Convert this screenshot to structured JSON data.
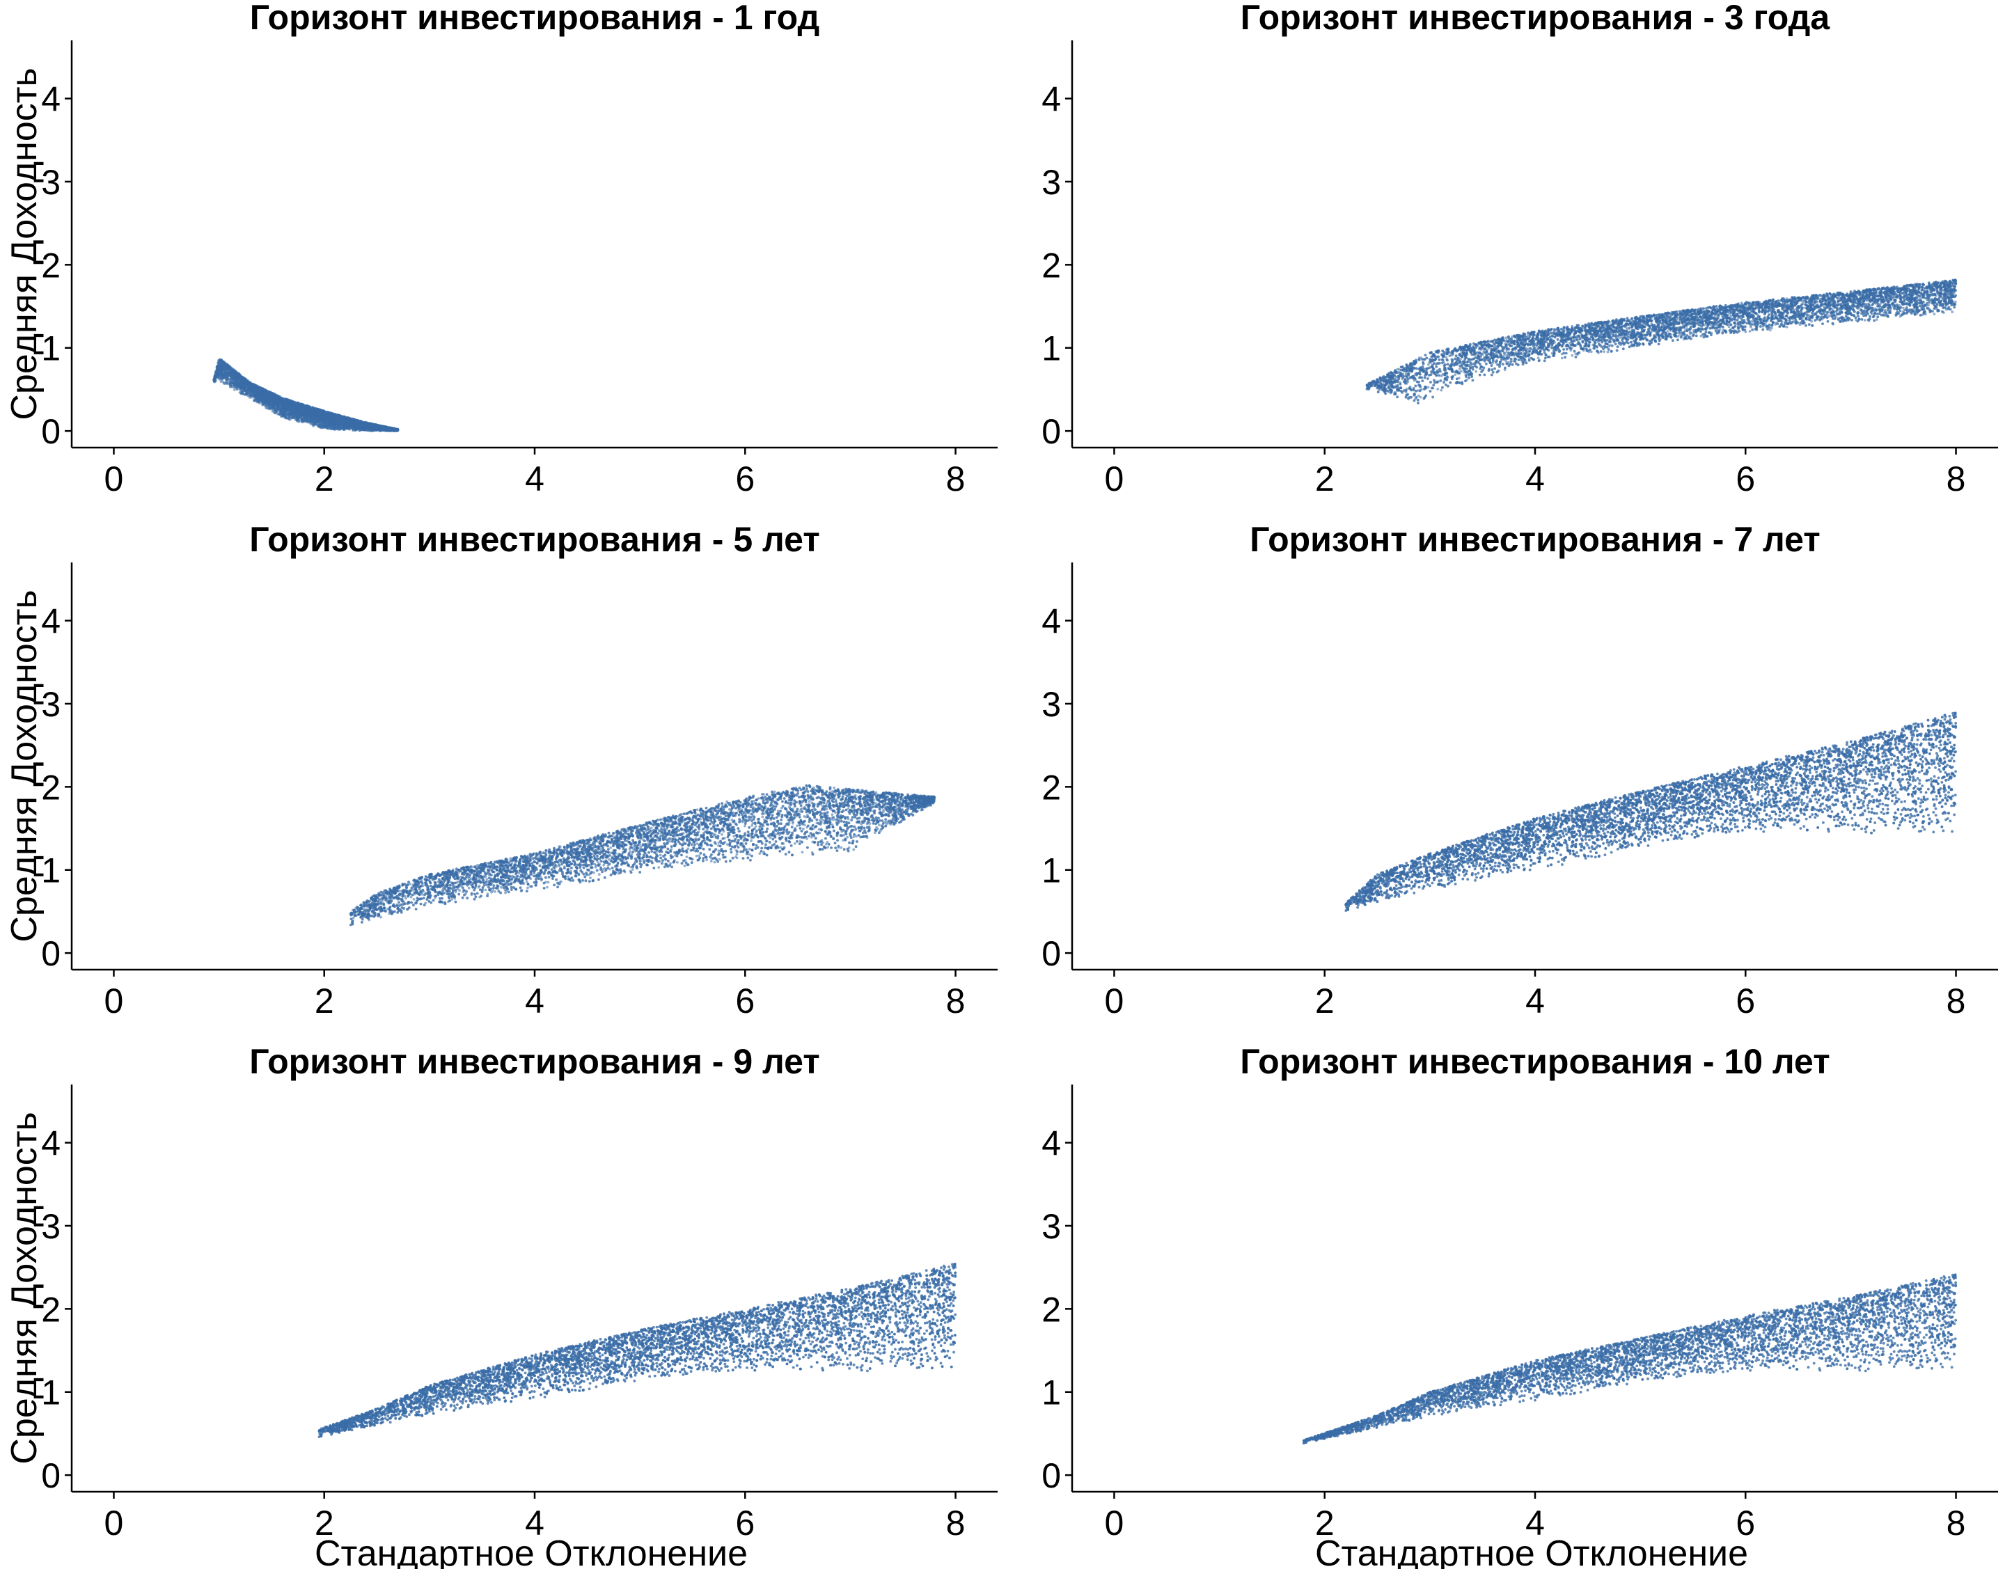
{
  "figure": {
    "point_color": "#3a6ea8",
    "x_axis_title": "Стандартное Отклонение",
    "y_axis_title": "Средняя Доходность"
  },
  "chart_data": [
    {
      "type": "scatter",
      "title": "Горизонт инвестирования - 1 год",
      "xlabel": "",
      "ylabel": "Средняя Доходность",
      "xlim": [
        -0.4,
        8.4
      ],
      "ylim": [
        -0.2,
        4.7
      ],
      "x_ticks": [
        "0",
        "2",
        "4",
        "6",
        "8"
      ],
      "y_ticks": [
        "0",
        "1",
        "2",
        "3",
        "4"
      ],
      "grid": false,
      "point_cloud": {
        "x_range": [
          0.95,
          2.7
        ],
        "upper_edge": [
          [
            0.95,
            0.62
          ],
          [
            1.0,
            0.88
          ],
          [
            1.3,
            0.58
          ],
          [
            1.6,
            0.4
          ],
          [
            2.0,
            0.24
          ],
          [
            2.4,
            0.1
          ],
          [
            2.7,
            0.02
          ]
        ],
        "lower_edge": [
          [
            0.95,
            0.58
          ],
          [
            1.0,
            0.6
          ],
          [
            1.3,
            0.38
          ],
          [
            1.6,
            0.16
          ],
          [
            2.0,
            0.02
          ],
          [
            2.4,
            0.0
          ],
          [
            2.7,
            0.0
          ]
        ],
        "points": 6000
      }
    },
    {
      "type": "scatter",
      "title": "Горизонт инвестирования - 3 года",
      "xlabel": "",
      "ylabel": "",
      "xlim": [
        -0.4,
        8.4
      ],
      "ylim": [
        -0.2,
        4.7
      ],
      "x_ticks": [
        "0",
        "2",
        "4",
        "6",
        "8"
      ],
      "y_ticks": [
        "0",
        "1",
        "2",
        "3",
        "4"
      ],
      "grid": false,
      "point_cloud": {
        "x_range": [
          2.4,
          8.0
        ],
        "upper_edge": [
          [
            2.4,
            0.56
          ],
          [
            3.0,
            0.95
          ],
          [
            4.0,
            1.2
          ],
          [
            5.0,
            1.38
          ],
          [
            6.0,
            1.55
          ],
          [
            7.0,
            1.68
          ],
          [
            8.0,
            1.82
          ]
        ],
        "lower_edge": [
          [
            2.4,
            0.5
          ],
          [
            2.9,
            0.3
          ],
          [
            3.3,
            0.55
          ],
          [
            4.0,
            0.82
          ],
          [
            5.0,
            1.0
          ],
          [
            6.0,
            1.18
          ],
          [
            7.0,
            1.3
          ],
          [
            8.0,
            1.42
          ]
        ],
        "points": 9000
      }
    },
    {
      "type": "scatter",
      "title": "Горизонт инвестирования - 5 лет",
      "xlabel": "",
      "ylabel": "Средняя Доходность",
      "xlim": [
        -0.4,
        8.4
      ],
      "ylim": [
        -0.2,
        4.7
      ],
      "x_ticks": [
        "0",
        "2",
        "4",
        "6",
        "8"
      ],
      "y_ticks": [
        "0",
        "1",
        "2",
        "3",
        "4"
      ],
      "grid": false,
      "point_cloud": {
        "x_range": [
          2.25,
          7.8
        ],
        "upper_edge": [
          [
            2.25,
            0.5
          ],
          [
            2.5,
            0.72
          ],
          [
            3.0,
            0.95
          ],
          [
            4.0,
            1.2
          ],
          [
            5.0,
            1.55
          ],
          [
            6.0,
            1.88
          ],
          [
            6.6,
            2.02
          ],
          [
            7.8,
            1.88
          ]
        ],
        "lower_edge": [
          [
            2.25,
            0.32
          ],
          [
            3.0,
            0.55
          ],
          [
            4.0,
            0.75
          ],
          [
            5.0,
            0.95
          ],
          [
            6.0,
            1.1
          ],
          [
            7.0,
            1.22
          ],
          [
            7.8,
            1.8
          ]
        ],
        "points": 9000
      }
    },
    {
      "type": "scatter",
      "title": "Горизонт инвестирования - 7 лет",
      "xlabel": "",
      "ylabel": "",
      "xlim": [
        -0.4,
        8.4
      ],
      "ylim": [
        -0.2,
        4.7
      ],
      "x_ticks": [
        "0",
        "2",
        "4",
        "6",
        "8"
      ],
      "y_ticks": [
        "0",
        "1",
        "2",
        "3",
        "4"
      ],
      "grid": false,
      "point_cloud": {
        "x_range": [
          2.2,
          8.0
        ],
        "upper_edge": [
          [
            2.2,
            0.6
          ],
          [
            2.5,
            0.95
          ],
          [
            3.0,
            1.2
          ],
          [
            4.0,
            1.62
          ],
          [
            5.0,
            1.95
          ],
          [
            6.0,
            2.25
          ],
          [
            7.0,
            2.55
          ],
          [
            8.0,
            2.9
          ]
        ],
        "lower_edge": [
          [
            2.2,
            0.5
          ],
          [
            3.0,
            0.75
          ],
          [
            4.0,
            1.0
          ],
          [
            5.0,
            1.25
          ],
          [
            6.0,
            1.45
          ],
          [
            7.0,
            1.45
          ],
          [
            8.0,
            1.4
          ]
        ],
        "points": 12000
      }
    },
    {
      "type": "scatter",
      "title": "Горизонт инвестирования - 9 лет",
      "xlabel": "Стандартное Отклонение",
      "ylabel": "Средняя Доходность",
      "xlim": [
        -0.4,
        8.4
      ],
      "ylim": [
        -0.2,
        4.7
      ],
      "x_ticks": [
        "0",
        "2",
        "4",
        "6",
        "8"
      ],
      "y_ticks": [
        "0",
        "1",
        "2",
        "3",
        "4"
      ],
      "grid": false,
      "point_cloud": {
        "x_range": [
          1.95,
          8.0
        ],
        "upper_edge": [
          [
            1.95,
            0.55
          ],
          [
            2.5,
            0.8
          ],
          [
            3.0,
            1.08
          ],
          [
            4.0,
            1.45
          ],
          [
            5.0,
            1.75
          ],
          [
            6.0,
            2.0
          ],
          [
            7.0,
            2.25
          ],
          [
            8.0,
            2.55
          ]
        ],
        "lower_edge": [
          [
            1.95,
            0.45
          ],
          [
            3.0,
            0.72
          ],
          [
            4.0,
            0.92
          ],
          [
            5.0,
            1.12
          ],
          [
            6.0,
            1.25
          ],
          [
            7.0,
            1.25
          ],
          [
            8.0,
            1.25
          ]
        ],
        "points": 12000
      }
    },
    {
      "type": "scatter",
      "title": "Горизонт инвестирования - 10 лет",
      "xlabel": "Стандартное Отклонение",
      "ylabel": "",
      "xlim": [
        -0.4,
        8.4
      ],
      "ylim": [
        -0.2,
        4.7
      ],
      "x_ticks": [
        "0",
        "2",
        "4",
        "6",
        "8"
      ],
      "y_ticks": [
        "0",
        "1",
        "2",
        "3",
        "4"
      ],
      "grid": false,
      "point_cloud": {
        "x_range": [
          1.8,
          8.0
        ],
        "upper_edge": [
          [
            1.8,
            0.42
          ],
          [
            2.5,
            0.72
          ],
          [
            3.0,
            1.0
          ],
          [
            4.0,
            1.38
          ],
          [
            5.0,
            1.65
          ],
          [
            6.0,
            1.92
          ],
          [
            7.0,
            2.15
          ],
          [
            8.0,
            2.42
          ]
        ],
        "lower_edge": [
          [
            1.8,
            0.38
          ],
          [
            3.0,
            0.7
          ],
          [
            4.0,
            0.9
          ],
          [
            5.0,
            1.1
          ],
          [
            6.0,
            1.25
          ],
          [
            7.0,
            1.25
          ],
          [
            8.0,
            1.25
          ]
        ],
        "points": 11000
      }
    }
  ]
}
